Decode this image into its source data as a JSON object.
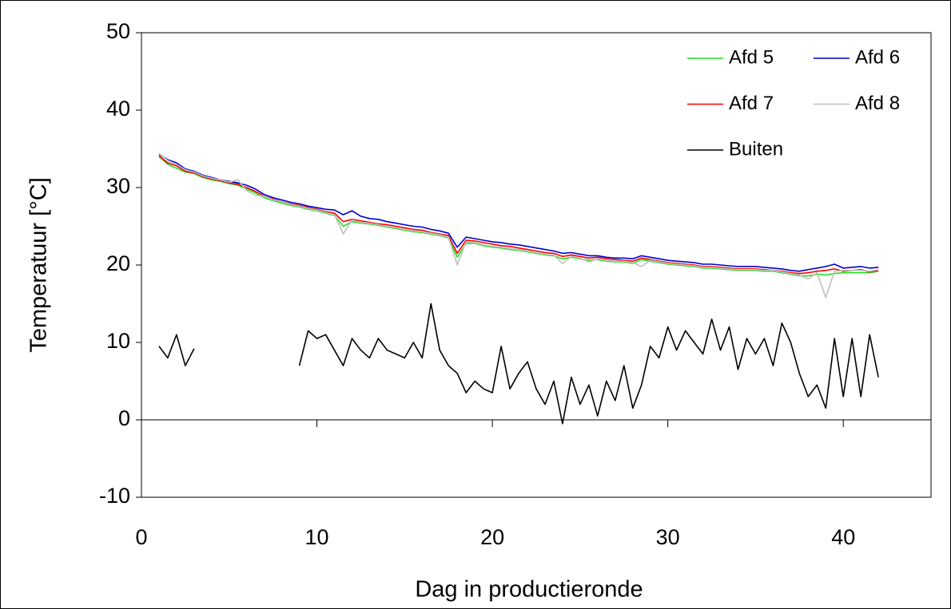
{
  "chart_data": {
    "type": "line",
    "xlabel": "Dag in productieronde",
    "ylabel": "Temperatuur [°C]",
    "xlim": [
      0,
      45
    ],
    "ylim": [
      -10,
      50
    ],
    "xticks": [
      0,
      10,
      20,
      30,
      40
    ],
    "yticks": [
      -10,
      0,
      10,
      20,
      30,
      40,
      50
    ],
    "legend": "upper right",
    "x": [
      1,
      1.5,
      2,
      2.5,
      3,
      3.5,
      4,
      4.5,
      5,
      5.5,
      6,
      6.5,
      7,
      7.5,
      8,
      8.5,
      9,
      9.5,
      10,
      10.5,
      11,
      11.5,
      12,
      12.5,
      13,
      13.5,
      14,
      14.5,
      15,
      15.5,
      16,
      16.5,
      17,
      17.5,
      18,
      18.5,
      19,
      19.5,
      20,
      20.5,
      21,
      21.5,
      22,
      22.5,
      23,
      23.5,
      24,
      24.5,
      25,
      25.5,
      26,
      26.5,
      27,
      27.5,
      28,
      28.5,
      29,
      29.5,
      30,
      30.5,
      31,
      31.5,
      32,
      32.5,
      33,
      33.5,
      34,
      34.5,
      35,
      35.5,
      36,
      36.5,
      37,
      37.5,
      38,
      38.5,
      39,
      39.5,
      40,
      40.5,
      41,
      41.5,
      42
    ],
    "series": [
      {
        "name": "Afd 5",
        "color": "#22dd22",
        "values": [
          34,
          33,
          32.5,
          32,
          31.8,
          31.3,
          31,
          30.8,
          30.5,
          30.3,
          29.8,
          29.3,
          28.7,
          28.3,
          28,
          27.7,
          27.5,
          27.2,
          27,
          26.7,
          26.4,
          25,
          25.6,
          25.4,
          25.3,
          25.1,
          24.9,
          24.7,
          24.5,
          24.3,
          24.2,
          24,
          23.8,
          23.5,
          21,
          22.8,
          22.8,
          22.5,
          22.3,
          22.2,
          22,
          21.9,
          21.7,
          21.5,
          21.3,
          21.2,
          20.8,
          21,
          20.8,
          20.6,
          20.7,
          20.5,
          20.4,
          20.4,
          20.2,
          20.7,
          20.5,
          20.3,
          20.1,
          20,
          19.9,
          19.8,
          19.6,
          19.6,
          19.5,
          19.4,
          19.3,
          19.3,
          19.3,
          19.2,
          19.2,
          19,
          18.8,
          18.6,
          18.6,
          18.8,
          18.7,
          18.9,
          19,
          19,
          19,
          19,
          19.2
        ]
      },
      {
        "name": "Afd 6",
        "color": "#0000cc",
        "values": [
          34.3,
          33.6,
          33.2,
          32.4,
          32.1,
          31.6,
          31.3,
          31,
          30.8,
          30.6,
          30.3,
          29.8,
          29.1,
          28.7,
          28.4,
          28.1,
          27.9,
          27.6,
          27.4,
          27.2,
          27.1,
          26.5,
          27,
          26.3,
          26,
          25.9,
          25.6,
          25.4,
          25.2,
          25,
          24.9,
          24.6,
          24.4,
          24.1,
          22.3,
          23.6,
          23.4,
          23.2,
          23,
          22.9,
          22.7,
          22.6,
          22.4,
          22.2,
          22,
          21.8,
          21.5,
          21.6,
          21.4,
          21.2,
          21.2,
          21,
          20.9,
          20.9,
          20.8,
          21.2,
          21,
          20.8,
          20.6,
          20.5,
          20.4,
          20.3,
          20.1,
          20.1,
          20,
          19.9,
          19.8,
          19.8,
          19.8,
          19.7,
          19.6,
          19.5,
          19.3,
          19.2,
          19.4,
          19.6,
          19.8,
          20.1,
          19.6,
          19.7,
          19.8,
          19.6,
          19.7
        ]
      },
      {
        "name": "Afd 7",
        "color": "#ff0000",
        "values": [
          34.1,
          33.2,
          32.8,
          32.1,
          31.9,
          31.4,
          31.1,
          30.9,
          30.6,
          30.4,
          30,
          29.5,
          28.9,
          28.5,
          28.2,
          27.9,
          27.7,
          27.4,
          27.2,
          26.9,
          26.7,
          25.6,
          25.9,
          25.7,
          25.5,
          25.3,
          25.2,
          25,
          24.8,
          24.6,
          24.5,
          24.2,
          24,
          23.8,
          21.5,
          23.2,
          23.1,
          22.9,
          22.7,
          22.5,
          22.4,
          22.2,
          22,
          21.8,
          21.6,
          21.5,
          21.1,
          21.3,
          21.1,
          20.9,
          21,
          20.8,
          20.7,
          20.6,
          20.5,
          20.9,
          20.7,
          20.5,
          20.3,
          20.2,
          20.1,
          20,
          19.8,
          19.8,
          19.7,
          19.6,
          19.5,
          19.5,
          19.5,
          19.4,
          19.3,
          19.2,
          19,
          18.9,
          19,
          19.2,
          19.3,
          19.5,
          19.2,
          19.3,
          19.4,
          19.1,
          19.3
        ]
      },
      {
        "name": "Afd 8",
        "color": "#c0c0c0",
        "values": [
          34.4,
          33.5,
          33,
          32.3,
          32,
          31.5,
          31.2,
          31,
          30.7,
          31,
          29.6,
          29,
          28.9,
          28.4,
          28.2,
          27.8,
          27.6,
          27.3,
          27.1,
          26.8,
          26.5,
          24,
          25.8,
          25.5,
          25.4,
          25.2,
          25,
          24.8,
          24.6,
          24.4,
          24.3,
          24.1,
          23.9,
          23.6,
          20,
          23,
          22.9,
          22.6,
          22.4,
          22.3,
          22.1,
          22,
          21.8,
          21.6,
          21.4,
          21.3,
          20.2,
          21.1,
          20.9,
          20.4,
          20.8,
          20.6,
          20.5,
          20.5,
          20.3,
          19.8,
          20.6,
          20.4,
          20.2,
          20.1,
          20,
          19.9,
          19.7,
          19.7,
          19.6,
          19.5,
          19.4,
          19.4,
          19.4,
          19.3,
          19.3,
          19.1,
          18.9,
          18.7,
          18.2,
          19,
          15.8,
          19.2,
          19.3,
          19.3,
          19.3,
          19.2,
          19.4
        ]
      },
      {
        "name": "Buiten",
        "color": "#000000",
        "values": [
          9.5,
          8,
          11,
          7,
          9.2,
          null,
          null,
          null,
          null,
          null,
          null,
          null,
          null,
          null,
          null,
          null,
          7,
          11.5,
          10.5,
          11,
          9,
          7,
          10.5,
          9,
          8,
          10.5,
          9,
          8.5,
          8,
          10,
          8,
          15,
          9,
          7,
          6,
          3.5,
          5,
          4,
          3.5,
          9.5,
          4,
          6,
          7.5,
          4,
          2,
          5,
          -0.5,
          5.5,
          2,
          4.5,
          0.5,
          5,
          2.5,
          7,
          1.5,
          4.5,
          9.5,
          8,
          12,
          9,
          11.5,
          10,
          8.5,
          13,
          9,
          12,
          6.5,
          10.5,
          8.5,
          10.5,
          7,
          12.5,
          10,
          6,
          3,
          4.5,
          1.5,
          10.5,
          3,
          10.5,
          3,
          11,
          5.5
        ]
      }
    ]
  }
}
